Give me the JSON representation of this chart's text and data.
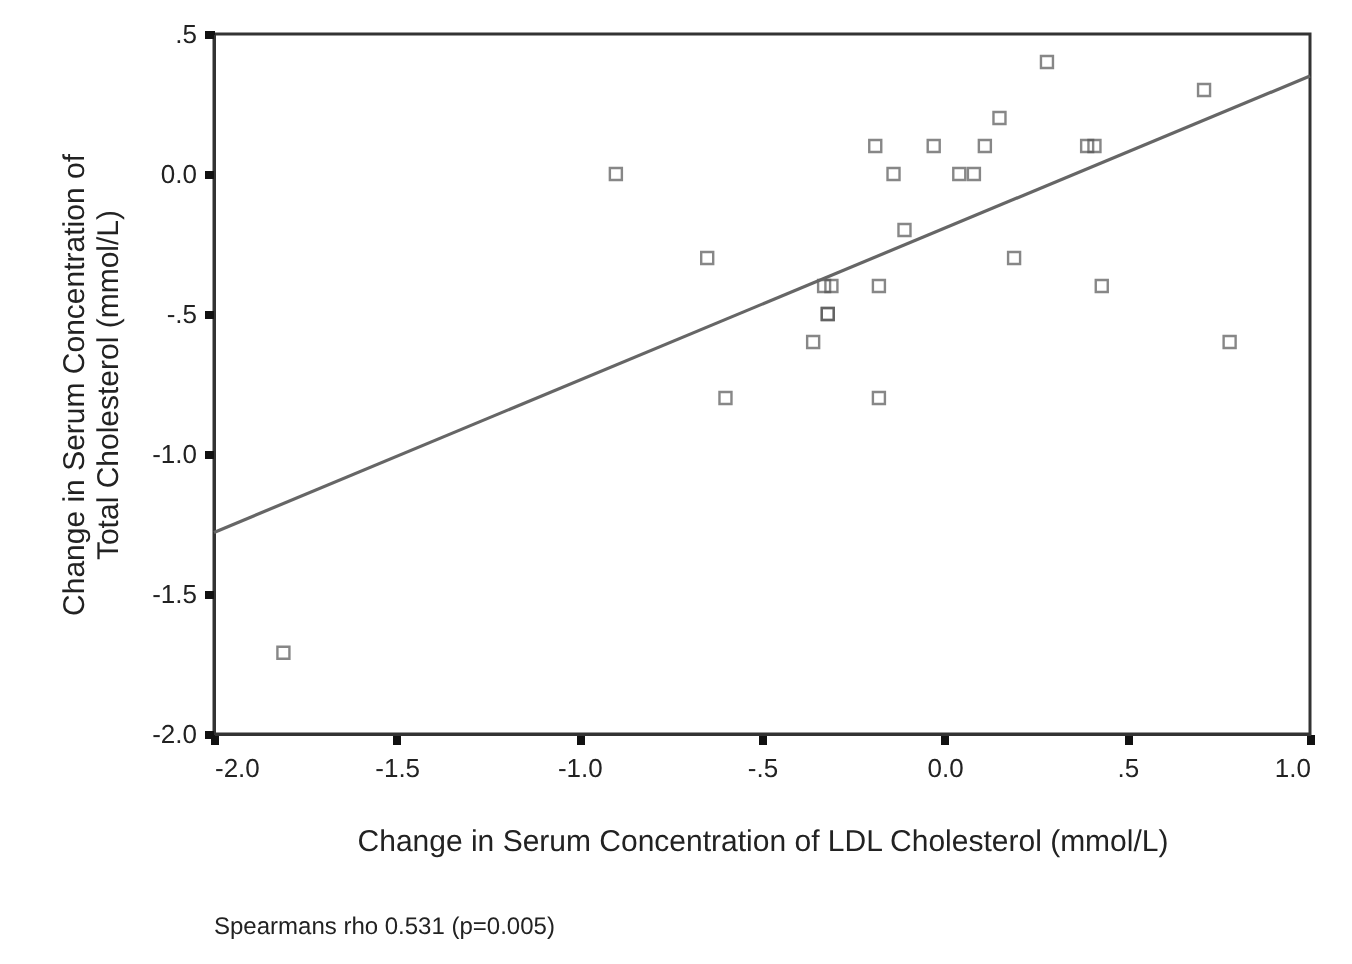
{
  "chart_data": {
    "type": "scatter",
    "xlabel": "Change in Serum Concentration of LDL Cholesterol (mmol/L)",
    "ylabel": "Change in Serum Concentration of\nTotal Cholesterol (mmol/L)",
    "annotations": [
      "Spearmans rho 0.531 (p=0.005)"
    ],
    "xlim": [
      -2.0,
      1.0
    ],
    "ylim": [
      -2.0,
      0.5
    ],
    "xticks": [
      {
        "value": -2.0,
        "label": "-2.0"
      },
      {
        "value": -1.5,
        "label": "-1.5"
      },
      {
        "value": -1.0,
        "label": "-1.0"
      },
      {
        "value": -0.5,
        "label": "-.5"
      },
      {
        "value": 0,
        "label": "0.0"
      },
      {
        "value": 0.5,
        "label": ".5"
      },
      {
        "value": 1.0,
        "label": "1.0"
      }
    ],
    "yticks": [
      {
        "value": 0.5,
        "label": ".5"
      },
      {
        "value": 0,
        "label": "0.0"
      },
      {
        "value": -0.5,
        "label": "-.5"
      },
      {
        "value": -1.0,
        "label": "-1.0"
      },
      {
        "value": -1.5,
        "label": "-1.5"
      },
      {
        "value": -2.0,
        "label": "-2.0"
      }
    ],
    "grid": false,
    "series": [
      {
        "marker": "square",
        "color": "#555555",
        "x": [
          -1.81,
          -0.9,
          -0.65,
          -0.6,
          -0.36,
          -0.33,
          -0.31,
          -0.32,
          -0.32,
          -0.19,
          -0.18,
          -0.18,
          -0.14,
          -0.11,
          -0.03,
          0.04,
          0.08,
          0.11,
          0.15,
          0.19,
          0.28,
          0.39,
          0.41,
          0.43,
          0.71,
          0.78
        ],
        "values": [
          -1.71,
          0.0,
          -0.3,
          -0.8,
          -0.6,
          -0.4,
          -0.4,
          -0.5,
          -0.5,
          0.1,
          -0.4,
          -0.8,
          0.0,
          -0.2,
          0.1,
          0.0,
          0.0,
          0.1,
          0.2,
          -0.3,
          0.4,
          0.1,
          0.1,
          -0.4,
          0.3,
          -0.6
        ]
      },
      {
        "type": "line",
        "marker": "none",
        "color": "#666666",
        "line_style": "solid",
        "x": [
          -2.0,
          1.0
        ],
        "values": [
          -1.28,
          0.35
        ]
      }
    ]
  }
}
